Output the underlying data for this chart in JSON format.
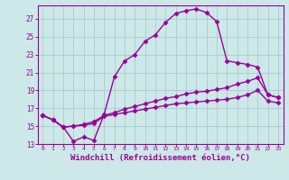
{
  "background_color": "#cce8e8",
  "grid_color": "#aacccc",
  "line_color": "#990099",
  "marker": "D",
  "markersize": 2.5,
  "linewidth": 1.0,
  "xlabel": "Windchill (Refroidissement éolien,°C)",
  "xlabel_fontsize": 6.5,
  "xlim": [
    -0.5,
    23.5
  ],
  "ylim": [
    13,
    28.5
  ],
  "yticks": [
    13,
    15,
    17,
    19,
    21,
    23,
    25,
    27
  ],
  "xticks": [
    0,
    1,
    2,
    3,
    4,
    5,
    6,
    7,
    8,
    9,
    10,
    11,
    12,
    13,
    14,
    15,
    16,
    17,
    18,
    19,
    20,
    21,
    22,
    23
  ],
  "curve1_x": [
    0,
    1,
    2,
    3,
    4,
    5,
    6,
    7,
    8,
    9,
    10,
    11,
    12,
    13,
    14,
    15,
    16,
    17,
    18,
    19,
    20,
    21,
    22,
    23
  ],
  "curve1_y": [
    16.2,
    15.7,
    14.9,
    13.3,
    13.8,
    13.4,
    16.3,
    20.5,
    22.3,
    23.0,
    24.5,
    25.2,
    26.6,
    27.6,
    27.9,
    28.1,
    27.7,
    26.7,
    22.3,
    22.1,
    21.9,
    21.6,
    18.5,
    18.2
  ],
  "curve2_x": [
    0,
    1,
    2,
    3,
    4,
    5,
    6,
    7,
    8,
    9,
    10,
    11,
    12,
    13,
    14,
    15,
    16,
    17,
    18,
    19,
    20,
    21,
    22,
    23
  ],
  "curve2_y": [
    16.2,
    15.7,
    14.9,
    15.0,
    15.1,
    15.3,
    16.1,
    16.3,
    16.5,
    16.7,
    16.9,
    17.1,
    17.3,
    17.5,
    17.6,
    17.7,
    17.8,
    17.9,
    18.0,
    18.2,
    18.5,
    19.0,
    17.8,
    17.6
  ],
  "curve3_x": [
    0,
    1,
    2,
    3,
    4,
    5,
    6,
    7,
    8,
    9,
    10,
    11,
    12,
    13,
    14,
    15,
    16,
    17,
    18,
    19,
    20,
    21,
    22,
    23
  ],
  "curve3_y": [
    16.2,
    15.7,
    14.9,
    15.0,
    15.2,
    15.5,
    16.2,
    16.5,
    16.9,
    17.2,
    17.5,
    17.8,
    18.1,
    18.3,
    18.6,
    18.8,
    18.9,
    19.1,
    19.3,
    19.7,
    20.0,
    20.4,
    18.5,
    18.2
  ]
}
